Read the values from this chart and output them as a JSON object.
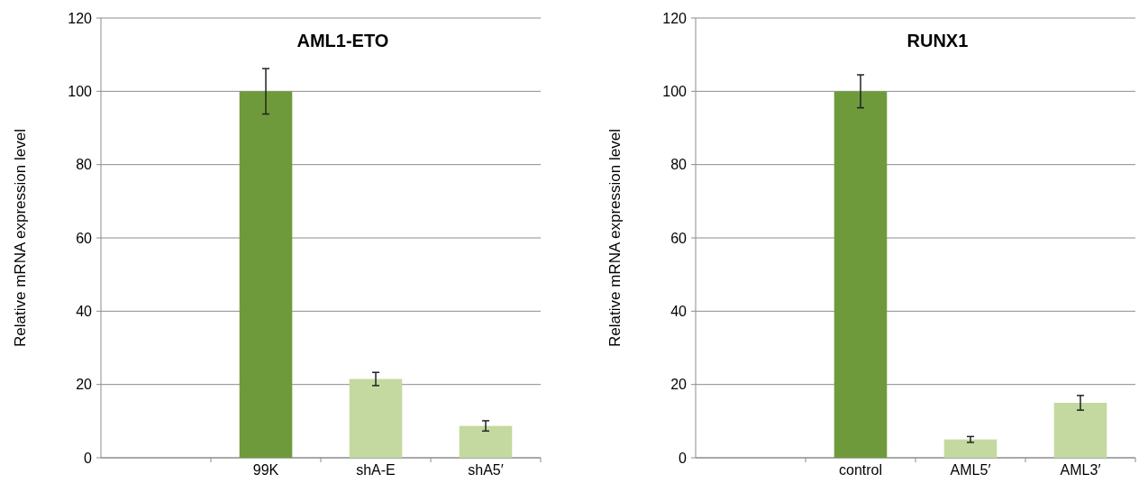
{
  "chart_data": [
    {
      "type": "bar",
      "title": "AML1-ETO",
      "ylabel": "Relative mRNA expression level",
      "categories": [
        null,
        "99K",
        "shA-E",
        "shA5′"
      ],
      "values": [
        null,
        100,
        21.5,
        8.7
      ],
      "errors": [
        null,
        6.2,
        1.8,
        1.4
      ],
      "colors": [
        null,
        "#6f9a3c",
        "#c4d9a0",
        "#c4d9a0"
      ],
      "ylim": [
        0,
        120
      ],
      "yticks": [
        0,
        20,
        40,
        60,
        80,
        100,
        120
      ],
      "grid": "y"
    },
    {
      "type": "bar",
      "title": "RUNX1",
      "ylabel": "Relative mRNA expression level",
      "categories": [
        null,
        "control",
        "AML5′",
        "AML3′"
      ],
      "values": [
        null,
        100,
        5,
        15
      ],
      "errors": [
        null,
        4.5,
        0.8,
        2
      ],
      "colors": [
        null,
        "#6f9a3c",
        "#c4d9a0",
        "#c4d9a0"
      ],
      "ylim": [
        0,
        120
      ],
      "yticks": [
        0,
        20,
        40,
        60,
        80,
        100,
        120
      ],
      "grid": "y"
    }
  ]
}
